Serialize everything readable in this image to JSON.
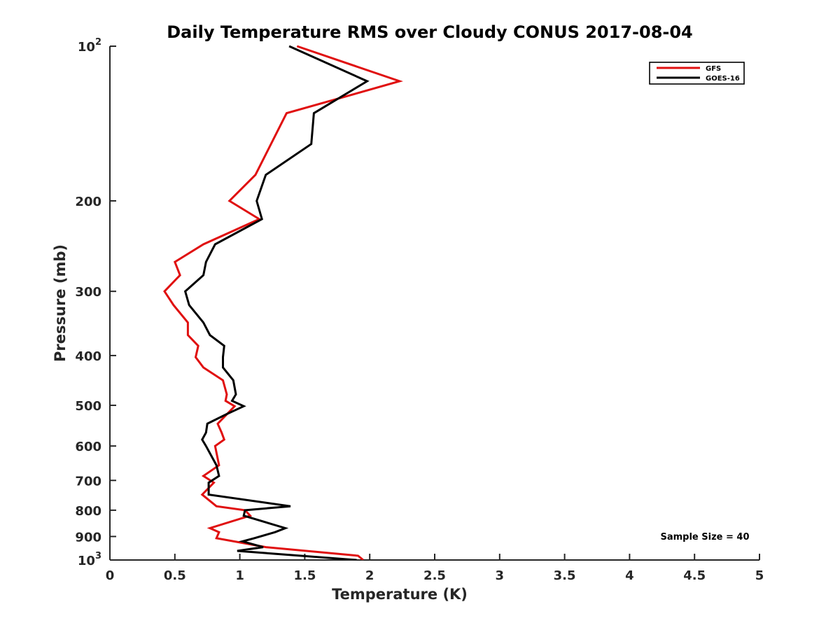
{
  "chart_data": {
    "type": "line",
    "title": "Daily Temperature RMS over Cloudy CONUS 2017-08-04",
    "xlabel": "Temperature (K)",
    "ylabel": "Pressure (mb)",
    "xlim": [
      0,
      5
    ],
    "ylim": [
      1000,
      100
    ],
    "y_scale": "log",
    "y_reversed": true,
    "grid": false,
    "legend_position": "top-right",
    "x_ticks": [
      {
        "value": 0,
        "label": "0"
      },
      {
        "value": 0.5,
        "label": "0.5"
      },
      {
        "value": 1,
        "label": "1"
      },
      {
        "value": 1.5,
        "label": "1.5"
      },
      {
        "value": 2,
        "label": "2"
      },
      {
        "value": 2.5,
        "label": "2.5"
      },
      {
        "value": 3,
        "label": "3"
      },
      {
        "value": 3.5,
        "label": "3.5"
      },
      {
        "value": 4,
        "label": "4"
      },
      {
        "value": 4.5,
        "label": "4.5"
      },
      {
        "value": 5,
        "label": "5"
      }
    ],
    "y_ticks": [
      {
        "value": 100,
        "base": "10",
        "exp": "2"
      },
      {
        "value": 200,
        "label": "200"
      },
      {
        "value": 300,
        "label": "300"
      },
      {
        "value": 400,
        "label": "400"
      },
      {
        "value": 500,
        "label": "500"
      },
      {
        "value": 600,
        "label": "600"
      },
      {
        "value": 700,
        "label": "700"
      },
      {
        "value": 800,
        "label": "800"
      },
      {
        "value": 900,
        "label": "900"
      },
      {
        "value": 1000,
        "base": "10",
        "exp": "3"
      }
    ],
    "series": [
      {
        "name": "GFS",
        "color": "#e01010",
        "points": [
          [
            1.44,
            100
          ],
          [
            2.23,
            117
          ],
          [
            1.36,
            135
          ],
          [
            1.12,
            178
          ],
          [
            0.92,
            200
          ],
          [
            1.15,
            217
          ],
          [
            0.72,
            243
          ],
          [
            0.5,
            263
          ],
          [
            0.54,
            279
          ],
          [
            0.42,
            300
          ],
          [
            0.49,
            319
          ],
          [
            0.6,
            345
          ],
          [
            0.6,
            365
          ],
          [
            0.68,
            383
          ],
          [
            0.66,
            403
          ],
          [
            0.72,
            422
          ],
          [
            0.87,
            447
          ],
          [
            0.9,
            476
          ],
          [
            0.89,
            490
          ],
          [
            0.96,
            502
          ],
          [
            0.83,
            543
          ],
          [
            0.86,
            565
          ],
          [
            0.88,
            583
          ],
          [
            0.81,
            600
          ],
          [
            0.84,
            654
          ],
          [
            0.72,
            686
          ],
          [
            0.8,
            707
          ],
          [
            0.71,
            746
          ],
          [
            0.82,
            786
          ],
          [
            1.04,
            800
          ],
          [
            1.08,
            820
          ],
          [
            0.77,
            867
          ],
          [
            0.84,
            883
          ],
          [
            0.82,
            907
          ],
          [
            1.2,
            944
          ],
          [
            1.91,
            981
          ],
          [
            1.95,
            1000
          ]
        ]
      },
      {
        "name": "GOES-16",
        "color": "#000000",
        "points": [
          [
            1.38,
            100
          ],
          [
            1.98,
            117
          ],
          [
            1.57,
            135
          ],
          [
            1.55,
            155
          ],
          [
            1.2,
            178
          ],
          [
            1.13,
            200
          ],
          [
            1.17,
            217
          ],
          [
            0.81,
            243
          ],
          [
            0.74,
            263
          ],
          [
            0.72,
            279
          ],
          [
            0.58,
            300
          ],
          [
            0.61,
            319
          ],
          [
            0.72,
            345
          ],
          [
            0.77,
            365
          ],
          [
            0.88,
            383
          ],
          [
            0.87,
            403
          ],
          [
            0.87,
            422
          ],
          [
            0.95,
            447
          ],
          [
            0.97,
            476
          ],
          [
            0.94,
            490
          ],
          [
            1.03,
            502
          ],
          [
            0.9,
            520
          ],
          [
            0.75,
            543
          ],
          [
            0.74,
            565
          ],
          [
            0.71,
            583
          ],
          [
            0.74,
            600
          ],
          [
            0.82,
            654
          ],
          [
            0.84,
            686
          ],
          [
            0.76,
            707
          ],
          [
            0.76,
            746
          ],
          [
            1.39,
            786
          ],
          [
            1.04,
            800
          ],
          [
            1.03,
            820
          ],
          [
            1.35,
            867
          ],
          [
            1.27,
            883
          ],
          [
            1.11,
            907
          ],
          [
            1.02,
            920
          ],
          [
            1.18,
            944
          ],
          [
            0.98,
            960
          ],
          [
            1.9,
            1000
          ]
        ]
      }
    ],
    "annotation": "Sample Size = 40"
  }
}
